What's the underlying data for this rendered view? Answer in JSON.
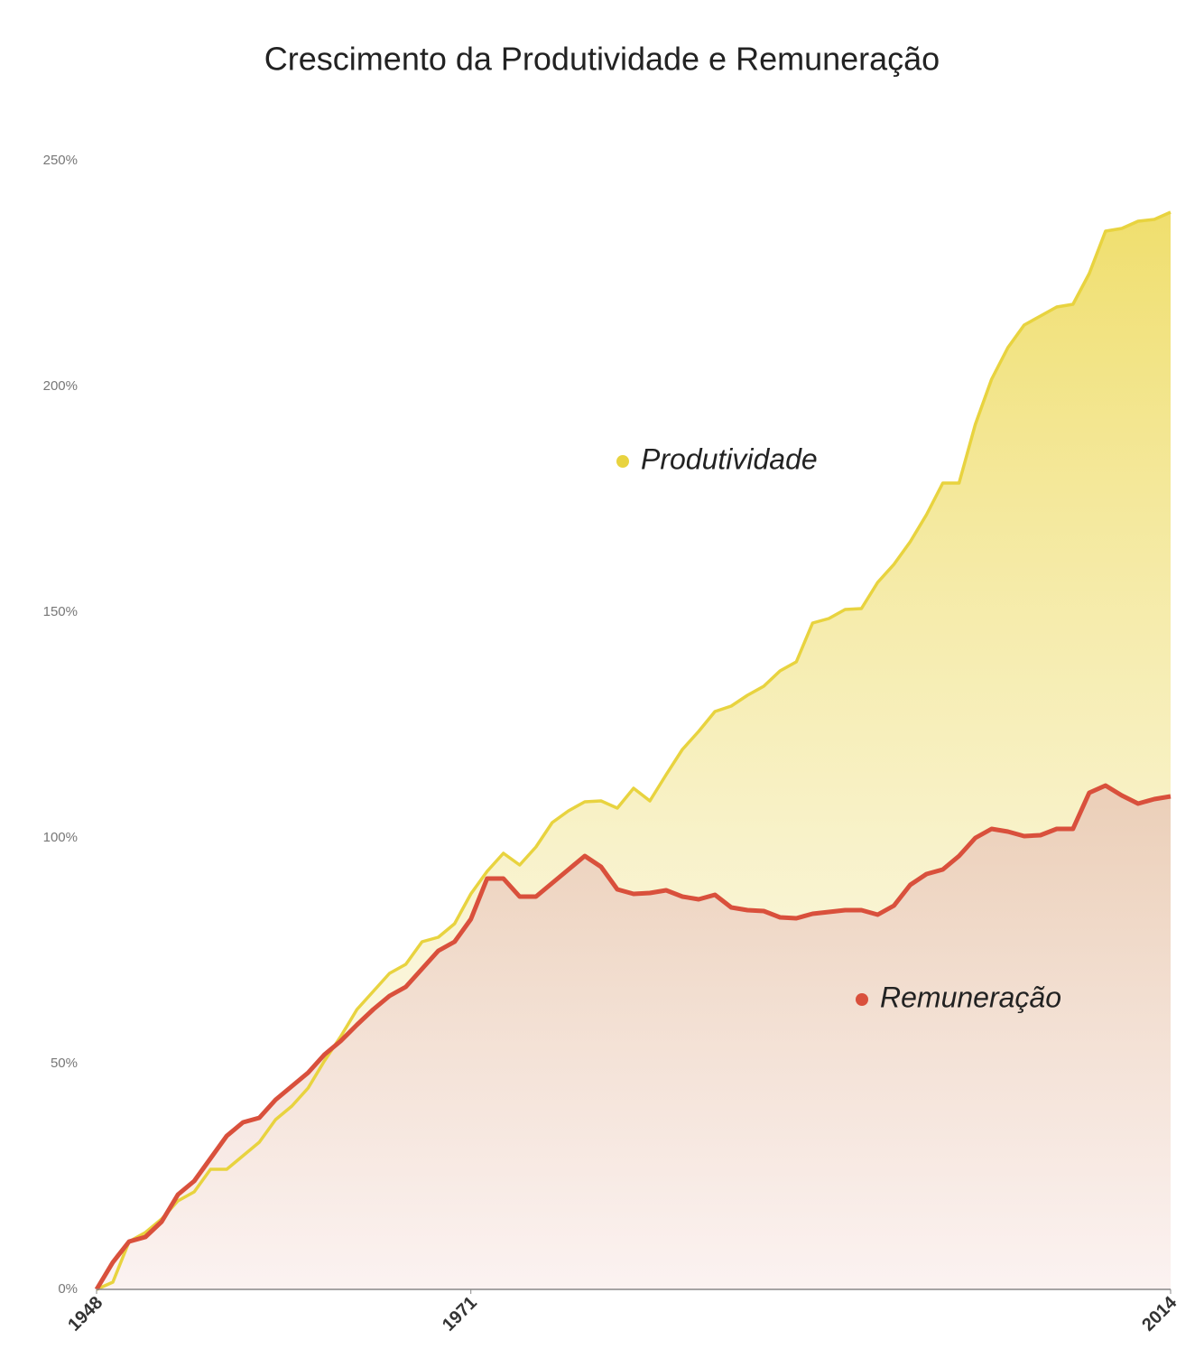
{
  "chart_data": {
    "type": "area",
    "title": "Crescimento da Produtividade e Remuneração",
    "x": [
      1948,
      1949,
      1950,
      1951,
      1952,
      1953,
      1954,
      1955,
      1956,
      1957,
      1958,
      1959,
      1960,
      1961,
      1962,
      1963,
      1964,
      1965,
      1966,
      1967,
      1968,
      1969,
      1970,
      1971,
      1972,
      1973,
      1974,
      1975,
      1976,
      1977,
      1978,
      1979,
      1980,
      1981,
      1982,
      1983,
      1984,
      1985,
      1986,
      1987,
      1988,
      1989,
      1990,
      1991,
      1992,
      1993,
      1994,
      1995,
      1996,
      1997,
      1998,
      1999,
      2000,
      2001,
      2002,
      2003,
      2004,
      2005,
      2006,
      2007,
      2008,
      2009,
      2010,
      2011,
      2012,
      2013,
      2014
    ],
    "series": [
      {
        "name": "Produtividade",
        "color": "#e8d33f",
        "values": [
          0,
          1.6,
          10.6,
          12.6,
          15.6,
          19.6,
          21.6,
          26.6,
          26.6,
          29.6,
          32.6,
          37.6,
          40.6,
          44.6,
          50.6,
          56,
          62,
          66,
          70,
          72,
          77,
          78,
          81,
          87.6,
          92.6,
          96.6,
          94,
          98,
          103.4,
          106,
          108,
          108.2,
          106.6,
          111,
          108.2,
          114,
          119.6,
          123.6,
          128,
          129.2,
          131.6,
          133.6,
          137,
          139,
          147.6,
          148.6,
          150.6,
          150.8,
          156.6,
          160.6,
          165.6,
          171.6,
          178.6,
          178.6,
          191.6,
          201.6,
          208.6,
          213.6,
          215.6,
          217.6,
          218.2,
          225,
          234.4,
          235,
          236.6,
          237,
          238.6
        ]
      },
      {
        "name": "Remuneração",
        "color": "#d9503c",
        "values": [
          0,
          6,
          10.6,
          11.6,
          15,
          21,
          24,
          29,
          34,
          37,
          38,
          42,
          45,
          48,
          52,
          55,
          58.6,
          62,
          65,
          67,
          71,
          75,
          77,
          82,
          91,
          91,
          87,
          87,
          90,
          93,
          96,
          93.6,
          88.6,
          87.6,
          87.8,
          88.4,
          87,
          86.4,
          87.4,
          84.6,
          84,
          83.8,
          82.4,
          82.2,
          83.2,
          83.6,
          84,
          84,
          83,
          85,
          89.6,
          92,
          93,
          96,
          100,
          102,
          101.4,
          100.4,
          100.6,
          102,
          102,
          110,
          111.6,
          109.4,
          107.6,
          108.6,
          109.2
        ]
      }
    ],
    "xlim": [
      1948,
      2014
    ],
    "xticks": [
      1948,
      1971,
      2014
    ],
    "ylim": [
      0,
      250
    ],
    "yticks": [
      {
        "value": 0,
        "label": "0%"
      },
      {
        "value": 50,
        "label": "50%"
      },
      {
        "value": 100,
        "label": "100%"
      },
      {
        "value": 150,
        "label": "150%"
      },
      {
        "value": 200,
        "label": "200%"
      },
      {
        "value": 250,
        "label": "250%"
      }
    ]
  }
}
